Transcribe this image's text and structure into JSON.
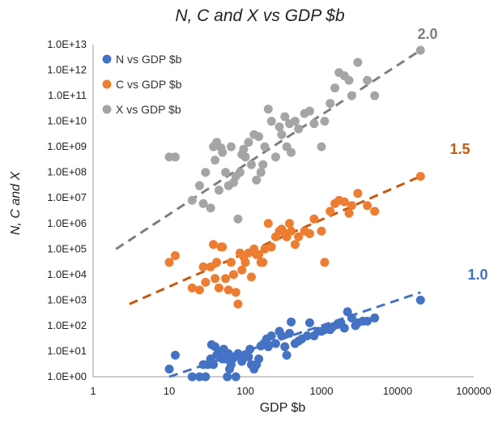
{
  "chart_data": {
    "type": "scatter",
    "title": "N, C and X   vs   GDP $b",
    "xlabel": "GDP $b",
    "ylabel": "N, C and X",
    "x_scale": "log",
    "y_scale": "log",
    "xlim": [
      1,
      100000
    ],
    "ylim": [
      1,
      10000000000000
    ],
    "x_ticks": [
      "1",
      "10",
      "100",
      "1000",
      "10000",
      "100000"
    ],
    "y_ticks": [
      "1.0E+00",
      "1.0E+01",
      "1.0E+02",
      "1.0E+03",
      "1.0E+04",
      "1.0E+05",
      "1.0E+06",
      "1.0E+07",
      "1.0E+08",
      "1.0E+09",
      "1.0E+10",
      "1.0E+11",
      "1.0E+12",
      "1.0E+13"
    ],
    "grid": false,
    "legend_position": "top-left",
    "series": [
      {
        "name": "N vs GDP $b",
        "color": "#4472C4",
        "points": [
          [
            10,
            2
          ],
          [
            12,
            7
          ],
          [
            20,
            1
          ],
          [
            25,
            1
          ],
          [
            28,
            3
          ],
          [
            30,
            1
          ],
          [
            32,
            3
          ],
          [
            35,
            5
          ],
          [
            36,
            18
          ],
          [
            38,
            3
          ],
          [
            40,
            15
          ],
          [
            42,
            7
          ],
          [
            45,
            10
          ],
          [
            47,
            6
          ],
          [
            50,
            5
          ],
          [
            52,
            12
          ],
          [
            55,
            5
          ],
          [
            58,
            1
          ],
          [
            60,
            8
          ],
          [
            62,
            2
          ],
          [
            65,
            3
          ],
          [
            68,
            5
          ],
          [
            72,
            6
          ],
          [
            75,
            1
          ],
          [
            80,
            8
          ],
          [
            90,
            4
          ],
          [
            100,
            7
          ],
          [
            110,
            6
          ],
          [
            115,
            12
          ],
          [
            120,
            3
          ],
          [
            130,
            2
          ],
          [
            140,
            3
          ],
          [
            150,
            5
          ],
          [
            160,
            16
          ],
          [
            175,
            20
          ],
          [
            190,
            30
          ],
          [
            200,
            15
          ],
          [
            220,
            40
          ],
          [
            250,
            20
          ],
          [
            280,
            60
          ],
          [
            300,
            40
          ],
          [
            330,
            15
          ],
          [
            350,
            7
          ],
          [
            380,
            50
          ],
          [
            400,
            140
          ],
          [
            450,
            20
          ],
          [
            500,
            25
          ],
          [
            550,
            30
          ],
          [
            650,
            40
          ],
          [
            700,
            130
          ],
          [
            800,
            40
          ],
          [
            900,
            60
          ],
          [
            1000,
            60
          ],
          [
            1100,
            70
          ],
          [
            1200,
            80
          ],
          [
            1300,
            70
          ],
          [
            1400,
            90
          ],
          [
            1600,
            110
          ],
          [
            1800,
            130
          ],
          [
            2000,
            80
          ],
          [
            2200,
            350
          ],
          [
            2500,
            200
          ],
          [
            2800,
            100
          ],
          [
            3000,
            130
          ],
          [
            3500,
            150
          ],
          [
            4000,
            150
          ],
          [
            5000,
            200
          ],
          [
            20000,
            1000
          ]
        ]
      },
      {
        "name": "C vs GDP $b",
        "color": "#ED7D31",
        "points": [
          [
            10,
            30000
          ],
          [
            12,
            55000
          ],
          [
            20,
            3000
          ],
          [
            25,
            2500
          ],
          [
            28,
            20000
          ],
          [
            30,
            5000
          ],
          [
            35,
            20000
          ],
          [
            38,
            150000
          ],
          [
            40,
            7000
          ],
          [
            42,
            30000
          ],
          [
            45,
            3000
          ],
          [
            48,
            120000
          ],
          [
            50,
            120000
          ],
          [
            55,
            7000
          ],
          [
            60,
            2500
          ],
          [
            65,
            30000
          ],
          [
            70,
            10000
          ],
          [
            75,
            2000
          ],
          [
            80,
            700
          ],
          [
            85,
            70000
          ],
          [
            90,
            15000
          ],
          [
            95,
            50000
          ],
          [
            100,
            30000
          ],
          [
            110,
            70000
          ],
          [
            120,
            8000
          ],
          [
            130,
            100000
          ],
          [
            140,
            60000
          ],
          [
            150,
            60000
          ],
          [
            160,
            30000
          ],
          [
            170,
            30000
          ],
          [
            180,
            100000
          ],
          [
            200,
            1000000
          ],
          [
            220,
            120000
          ],
          [
            250,
            300000
          ],
          [
            280,
            500000
          ],
          [
            300,
            600000
          ],
          [
            330,
            400000
          ],
          [
            350,
            300000
          ],
          [
            380,
            1000000
          ],
          [
            400,
            500000
          ],
          [
            450,
            150000
          ],
          [
            500,
            300000
          ],
          [
            600,
            500000
          ],
          [
            700,
            400000
          ],
          [
            800,
            1500000
          ],
          [
            1000,
            500000
          ],
          [
            1100,
            30000
          ],
          [
            1300,
            3000000
          ],
          [
            1500,
            6000000
          ],
          [
            1700,
            8000000
          ],
          [
            2000,
            7000000
          ],
          [
            2300,
            2500000
          ],
          [
            2500,
            5000000
          ],
          [
            3000,
            15000000
          ],
          [
            4000,
            5000000
          ],
          [
            5000,
            3000000
          ],
          [
            20000,
            70000000
          ]
        ]
      },
      {
        "name": "X vs GDP $b",
        "color": "#A5A5A5",
        "points": [
          [
            10,
            400000000
          ],
          [
            12,
            400000000
          ],
          [
            20,
            8000000
          ],
          [
            25,
            30000000
          ],
          [
            28,
            6000000
          ],
          [
            30,
            100000000
          ],
          [
            35,
            4000000
          ],
          [
            38,
            1000000000
          ],
          [
            40,
            300000000
          ],
          [
            42,
            1500000000
          ],
          [
            45,
            20000000
          ],
          [
            48,
            900000000
          ],
          [
            50,
            600000000
          ],
          [
            55,
            100000000
          ],
          [
            60,
            30000000
          ],
          [
            65,
            1000000000
          ],
          [
            70,
            40000000
          ],
          [
            75,
            70000000
          ],
          [
            80,
            1500000
          ],
          [
            85,
            100000000
          ],
          [
            90,
            500000000
          ],
          [
            95,
            800000000
          ],
          [
            100,
            400000000
          ],
          [
            110,
            1500000000
          ],
          [
            120,
            200000000
          ],
          [
            130,
            3000000000
          ],
          [
            140,
            50000000
          ],
          [
            150,
            2500000000
          ],
          [
            160,
            100000000
          ],
          [
            170,
            200000000
          ],
          [
            180,
            1000000000
          ],
          [
            200,
            30000000000
          ],
          [
            220,
            10000000000
          ],
          [
            250,
            400000000
          ],
          [
            280,
            6000000000
          ],
          [
            300,
            3000000000
          ],
          [
            330,
            15000000000
          ],
          [
            350,
            1000000000
          ],
          [
            380,
            8000000000
          ],
          [
            400,
            600000000
          ],
          [
            450,
            10000000000
          ],
          [
            500,
            5000000000
          ],
          [
            600,
            20000000000
          ],
          [
            700,
            25000000000
          ],
          [
            800,
            8000000000
          ],
          [
            1000,
            1000000000
          ],
          [
            1100,
            10000000000
          ],
          [
            1300,
            50000000000
          ],
          [
            1500,
            200000000000
          ],
          [
            1700,
            800000000000
          ],
          [
            2000,
            600000000000
          ],
          [
            2300,
            400000000000
          ],
          [
            2500,
            100000000000
          ],
          [
            3000,
            2000000000000
          ],
          [
            4000,
            400000000000
          ],
          [
            5000,
            100000000000
          ],
          [
            20000,
            6000000000000
          ]
        ]
      }
    ],
    "trendlines": [
      {
        "series": "N vs GDP $b",
        "label": "1.0",
        "color": "#4472C4",
        "start": [
          10,
          1
        ],
        "end": [
          20000,
          2000
        ]
      },
      {
        "series": "C vs GDP $b",
        "label": "1.5",
        "color": "#C55A11",
        "start": [
          3,
          700
        ],
        "end": [
          20000,
          70000000
        ]
      },
      {
        "series": "X vs GDP $b",
        "label": "2.0",
        "color": "#7F7F7F",
        "start": [
          2,
          100000
        ],
        "end": [
          20000,
          6000000000000
        ]
      }
    ]
  }
}
